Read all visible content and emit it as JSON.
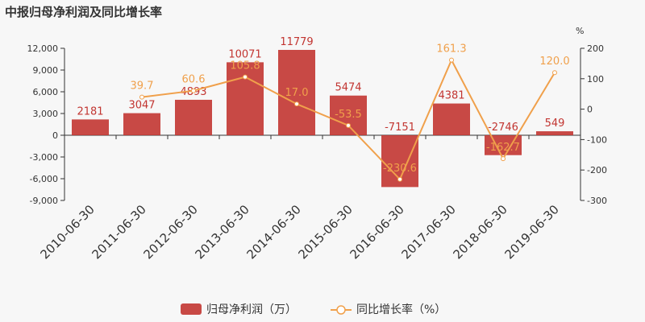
{
  "title": "中报归母净利润及同比增长率",
  "colors": {
    "bar": "#c23531",
    "line": "#f0a04b",
    "axis": "#333333",
    "background": "#f7f7f7"
  },
  "chart_data": {
    "type": "bar",
    "categories": [
      "2010-06-30",
      "2011-06-30",
      "2012-06-30",
      "2013-06-30",
      "2014-06-30",
      "2015-06-30",
      "2016-06-30",
      "2017-06-30",
      "2018-06-30",
      "2019-06-30"
    ],
    "series": [
      {
        "name": "归母净利润（万）",
        "type": "bar",
        "axis": "left",
        "values": [
          2181,
          3047,
          4893,
          10071,
          11779,
          5474,
          -7151,
          4381,
          -2746,
          549
        ],
        "labels": [
          "2181",
          "3047",
          "4893",
          "10071",
          "11779",
          "5474",
          "-7151",
          "4381",
          "-2746",
          "549"
        ]
      },
      {
        "name": "同比增长率（%）",
        "type": "line",
        "axis": "right",
        "values": [
          null,
          39.7,
          60.6,
          105.8,
          17.0,
          -53.5,
          -230.6,
          161.3,
          -162.7,
          120.0
        ],
        "labels": [
          "",
          "39.7",
          "60.6",
          "105.8",
          "17.0",
          "-53.5",
          "-230.6",
          "161.3",
          "-162.7",
          "120.0"
        ]
      }
    ],
    "y_left": {
      "min": -9000,
      "max": 12000,
      "ticks": [
        "12,000",
        "9,000",
        "6,000",
        "3,000",
        "0",
        "-3,000",
        "-6,000",
        "-9,000"
      ],
      "tick_values": [
        12000,
        9000,
        6000,
        3000,
        0,
        -3000,
        -6000,
        -9000
      ]
    },
    "y_right": {
      "unit": "%",
      "min": -300,
      "max": 200,
      "ticks": [
        "200",
        "100",
        "0",
        "-100",
        "-200",
        "-300"
      ],
      "tick_values": [
        200,
        100,
        0,
        -100,
        -200,
        -300
      ]
    },
    "grid": false,
    "legend_position": "bottom"
  },
  "legend": {
    "bar_label": "归母净利润（万）",
    "line_label": "同比增长率（%）"
  }
}
